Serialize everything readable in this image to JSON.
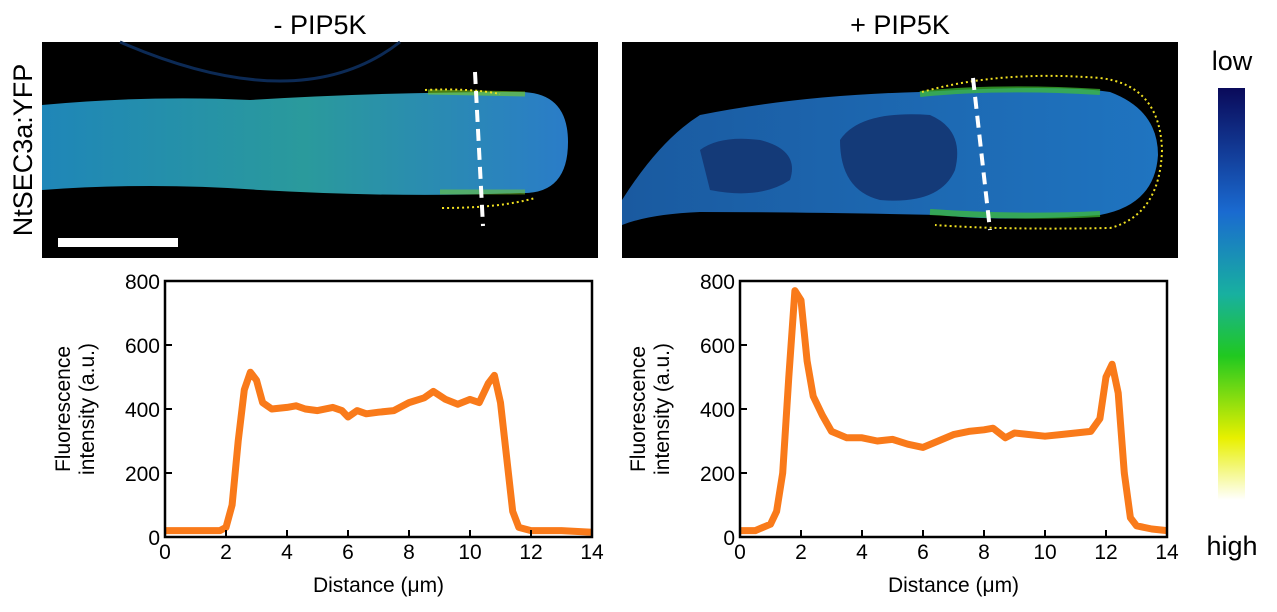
{
  "figure": {
    "panel_titles": [
      "- PIP5K",
      "+ PIP5K"
    ],
    "side_label": "NtSEC3a:YFP",
    "colorbar": {
      "top": "low",
      "bottom": "high"
    }
  },
  "chart_data": [
    {
      "type": "line",
      "xlabel": "Distance (μm)",
      "ylabel": [
        "Fluorescence",
        "intensity (a.u.)"
      ],
      "xlim": [
        0,
        14
      ],
      "ylim": [
        0,
        800
      ],
      "xticks": [
        0,
        2,
        4,
        6,
        8,
        10,
        12,
        14
      ],
      "yticks": [
        0,
        200,
        400,
        600,
        800
      ],
      "series": [
        {
          "color": "#f97a1a",
          "x": [
            0,
            1,
            1.8,
            2.0,
            2.2,
            2.4,
            2.6,
            2.8,
            3.0,
            3.2,
            3.5,
            4.0,
            4.3,
            4.6,
            5.0,
            5.5,
            5.8,
            6.0,
            6.3,
            6.6,
            7.0,
            7.5,
            8.0,
            8.5,
            8.8,
            9.2,
            9.6,
            10.0,
            10.3,
            10.6,
            10.8,
            11.0,
            11.2,
            11.4,
            11.6,
            12,
            13,
            14
          ],
          "values": [
            20,
            20,
            20,
            30,
            100,
            300,
            460,
            515,
            490,
            420,
            400,
            405,
            410,
            400,
            395,
            405,
            395,
            375,
            395,
            385,
            390,
            395,
            420,
            435,
            455,
            430,
            415,
            430,
            420,
            480,
            505,
            420,
            250,
            80,
            30,
            20,
            20,
            15
          ]
        }
      ]
    },
    {
      "type": "line",
      "xlabel": "Distance (μm)",
      "ylabel": [
        "Fluorescence",
        "intensity (a.u.)"
      ],
      "xlim": [
        0,
        14
      ],
      "ylim": [
        0,
        800
      ],
      "xticks": [
        0,
        2,
        4,
        6,
        8,
        10,
        12,
        14
      ],
      "yticks": [
        0,
        200,
        400,
        600,
        800
      ],
      "series": [
        {
          "color": "#f97a1a",
          "x": [
            0,
            0.5,
            1.0,
            1.2,
            1.4,
            1.6,
            1.8,
            2.0,
            2.2,
            2.4,
            2.7,
            3.0,
            3.5,
            4.0,
            4.5,
            5.0,
            5.5,
            6.0,
            6.5,
            7.0,
            7.5,
            8.0,
            8.3,
            8.7,
            9.0,
            9.5,
            10,
            10.5,
            11.0,
            11.5,
            11.8,
            12.0,
            12.2,
            12.4,
            12.6,
            12.8,
            13.0,
            13.5,
            14
          ],
          "values": [
            20,
            20,
            40,
            80,
            200,
            500,
            770,
            740,
            550,
            440,
            380,
            330,
            310,
            310,
            300,
            305,
            290,
            280,
            300,
            320,
            330,
            335,
            340,
            310,
            325,
            320,
            315,
            320,
            325,
            330,
            370,
            500,
            540,
            450,
            200,
            60,
            35,
            25,
            20
          ]
        }
      ]
    }
  ]
}
